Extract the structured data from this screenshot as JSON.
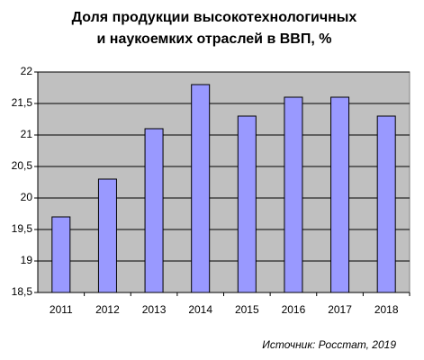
{
  "chart_data": {
    "type": "bar",
    "title": [
      "Доля продукции высокотехнологичных",
      "и наукоемких отраслей в ВВП, %"
    ],
    "categories": [
      "2011",
      "2012",
      "2013",
      "2014",
      "2015",
      "2016",
      "2017",
      "2018"
    ],
    "values": [
      19.7,
      20.3,
      21.1,
      21.8,
      21.3,
      21.6,
      21.6,
      21.3
    ],
    "color": "#9999ff",
    "ylim": [
      18.5,
      22
    ],
    "yticks": [
      {
        "value": 18.5,
        "label": "18,5"
      },
      19,
      {
        "value": 19.5,
        "label": "19,5"
      },
      20,
      {
        "value": 20.5,
        "label": "20,5"
      },
      21,
      {
        "value": 21.5,
        "label": "21,5"
      },
      22
    ],
    "grid": true,
    "source": "Источник: Росстат, 2019"
  }
}
